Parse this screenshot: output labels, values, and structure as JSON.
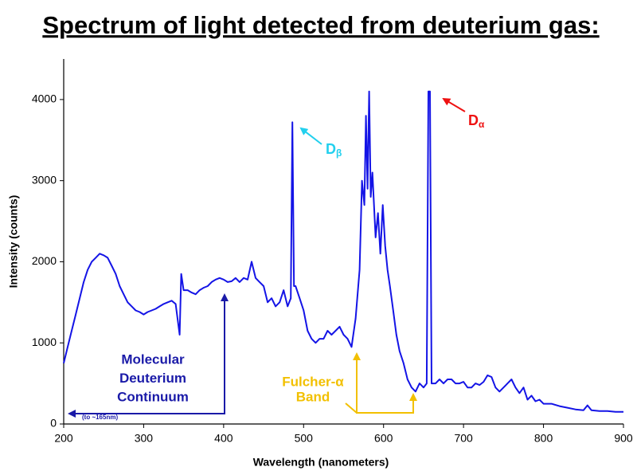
{
  "chart_data": {
    "type": "line",
    "title": "Spectrum of light detected from deuterium gas:",
    "xlabel": "Wavelength (nanometers)",
    "ylabel": "Intensity (counts)",
    "xlim": [
      200,
      900
    ],
    "ylim": [
      0,
      4500
    ],
    "xticks": [
      200,
      300,
      400,
      500,
      600,
      700,
      800,
      900
    ],
    "yticks": [
      0,
      1000,
      2000,
      3000,
      4000
    ],
    "grid": false,
    "x": [
      200,
      205,
      210,
      215,
      220,
      225,
      230,
      235,
      240,
      245,
      250,
      255,
      260,
      265,
      270,
      275,
      280,
      285,
      290,
      295,
      300,
      305,
      310,
      315,
      320,
      325,
      330,
      335,
      340,
      345,
      347,
      350,
      355,
      360,
      365,
      370,
      375,
      380,
      385,
      390,
      395,
      400,
      405,
      410,
      415,
      420,
      425,
      430,
      435,
      440,
      445,
      450,
      455,
      460,
      465,
      470,
      475,
      480,
      484,
      486,
      488,
      490,
      495,
      500,
      505,
      510,
      515,
      520,
      525,
      530,
      535,
      540,
      545,
      550,
      555,
      560,
      565,
      570,
      573,
      576,
      578,
      580,
      582,
      584,
      586,
      588,
      590,
      593,
      596,
      599,
      602,
      605,
      608,
      612,
      616,
      620,
      625,
      630,
      635,
      640,
      645,
      650,
      654,
      656,
      658,
      660,
      665,
      670,
      675,
      680,
      685,
      690,
      695,
      700,
      705,
      710,
      715,
      720,
      725,
      730,
      735,
      740,
      745,
      750,
      755,
      760,
      765,
      770,
      775,
      780,
      785,
      790,
      795,
      800,
      810,
      820,
      830,
      840,
      850,
      855,
      860,
      870,
      880,
      890,
      900
    ],
    "series": [
      {
        "name": "Deuterium spectrum",
        "color": "#1414e6",
        "values": [
          750,
          950,
          1150,
          1350,
          1550,
          1750,
          1900,
          2000,
          2050,
          2100,
          2080,
          2050,
          1950,
          1850,
          1700,
          1600,
          1500,
          1450,
          1400,
          1380,
          1350,
          1380,
          1400,
          1420,
          1450,
          1480,
          1500,
          1520,
          1480,
          1100,
          1850,
          1650,
          1650,
          1620,
          1600,
          1650,
          1680,
          1700,
          1750,
          1780,
          1800,
          1780,
          1750,
          1760,
          1800,
          1750,
          1800,
          1780,
          2000,
          1800,
          1750,
          1700,
          1500,
          1550,
          1450,
          1500,
          1650,
          1450,
          1550,
          3720,
          1700,
          1700,
          1550,
          1400,
          1150,
          1050,
          1000,
          1050,
          1050,
          1150,
          1100,
          1150,
          1200,
          1100,
          1050,
          950,
          1300,
          1900,
          3000,
          2700,
          3800,
          2900,
          4100,
          2800,
          3100,
          2700,
          2300,
          2600,
          2100,
          2700,
          2200,
          1900,
          1700,
          1400,
          1100,
          900,
          750,
          550,
          450,
          400,
          500,
          450,
          500,
          4100,
          4100,
          500,
          500,
          550,
          500,
          550,
          550,
          500,
          500,
          520,
          450,
          450,
          500,
          480,
          520,
          600,
          580,
          450,
          400,
          450,
          500,
          550,
          450,
          380,
          450,
          300,
          350,
          280,
          300,
          250,
          250,
          220,
          200,
          180,
          170,
          230,
          170,
          160,
          160,
          150,
          150
        ]
      }
    ],
    "annotations": [
      {
        "text": "D",
        "subscript": "β",
        "color": "#22d0ee"
      },
      {
        "text": "D",
        "subscript": "α",
        "color": "#ee1111"
      },
      {
        "lines": [
          "Molecular",
          "Deuterium",
          "Continuum"
        ],
        "color": "#1a1aa8"
      },
      {
        "text": "(to ~165nm)",
        "color": "#1a1aa8"
      },
      {
        "lines": [
          "Fulcher-α",
          "Band"
        ],
        "color": "#f2c000"
      }
    ]
  }
}
